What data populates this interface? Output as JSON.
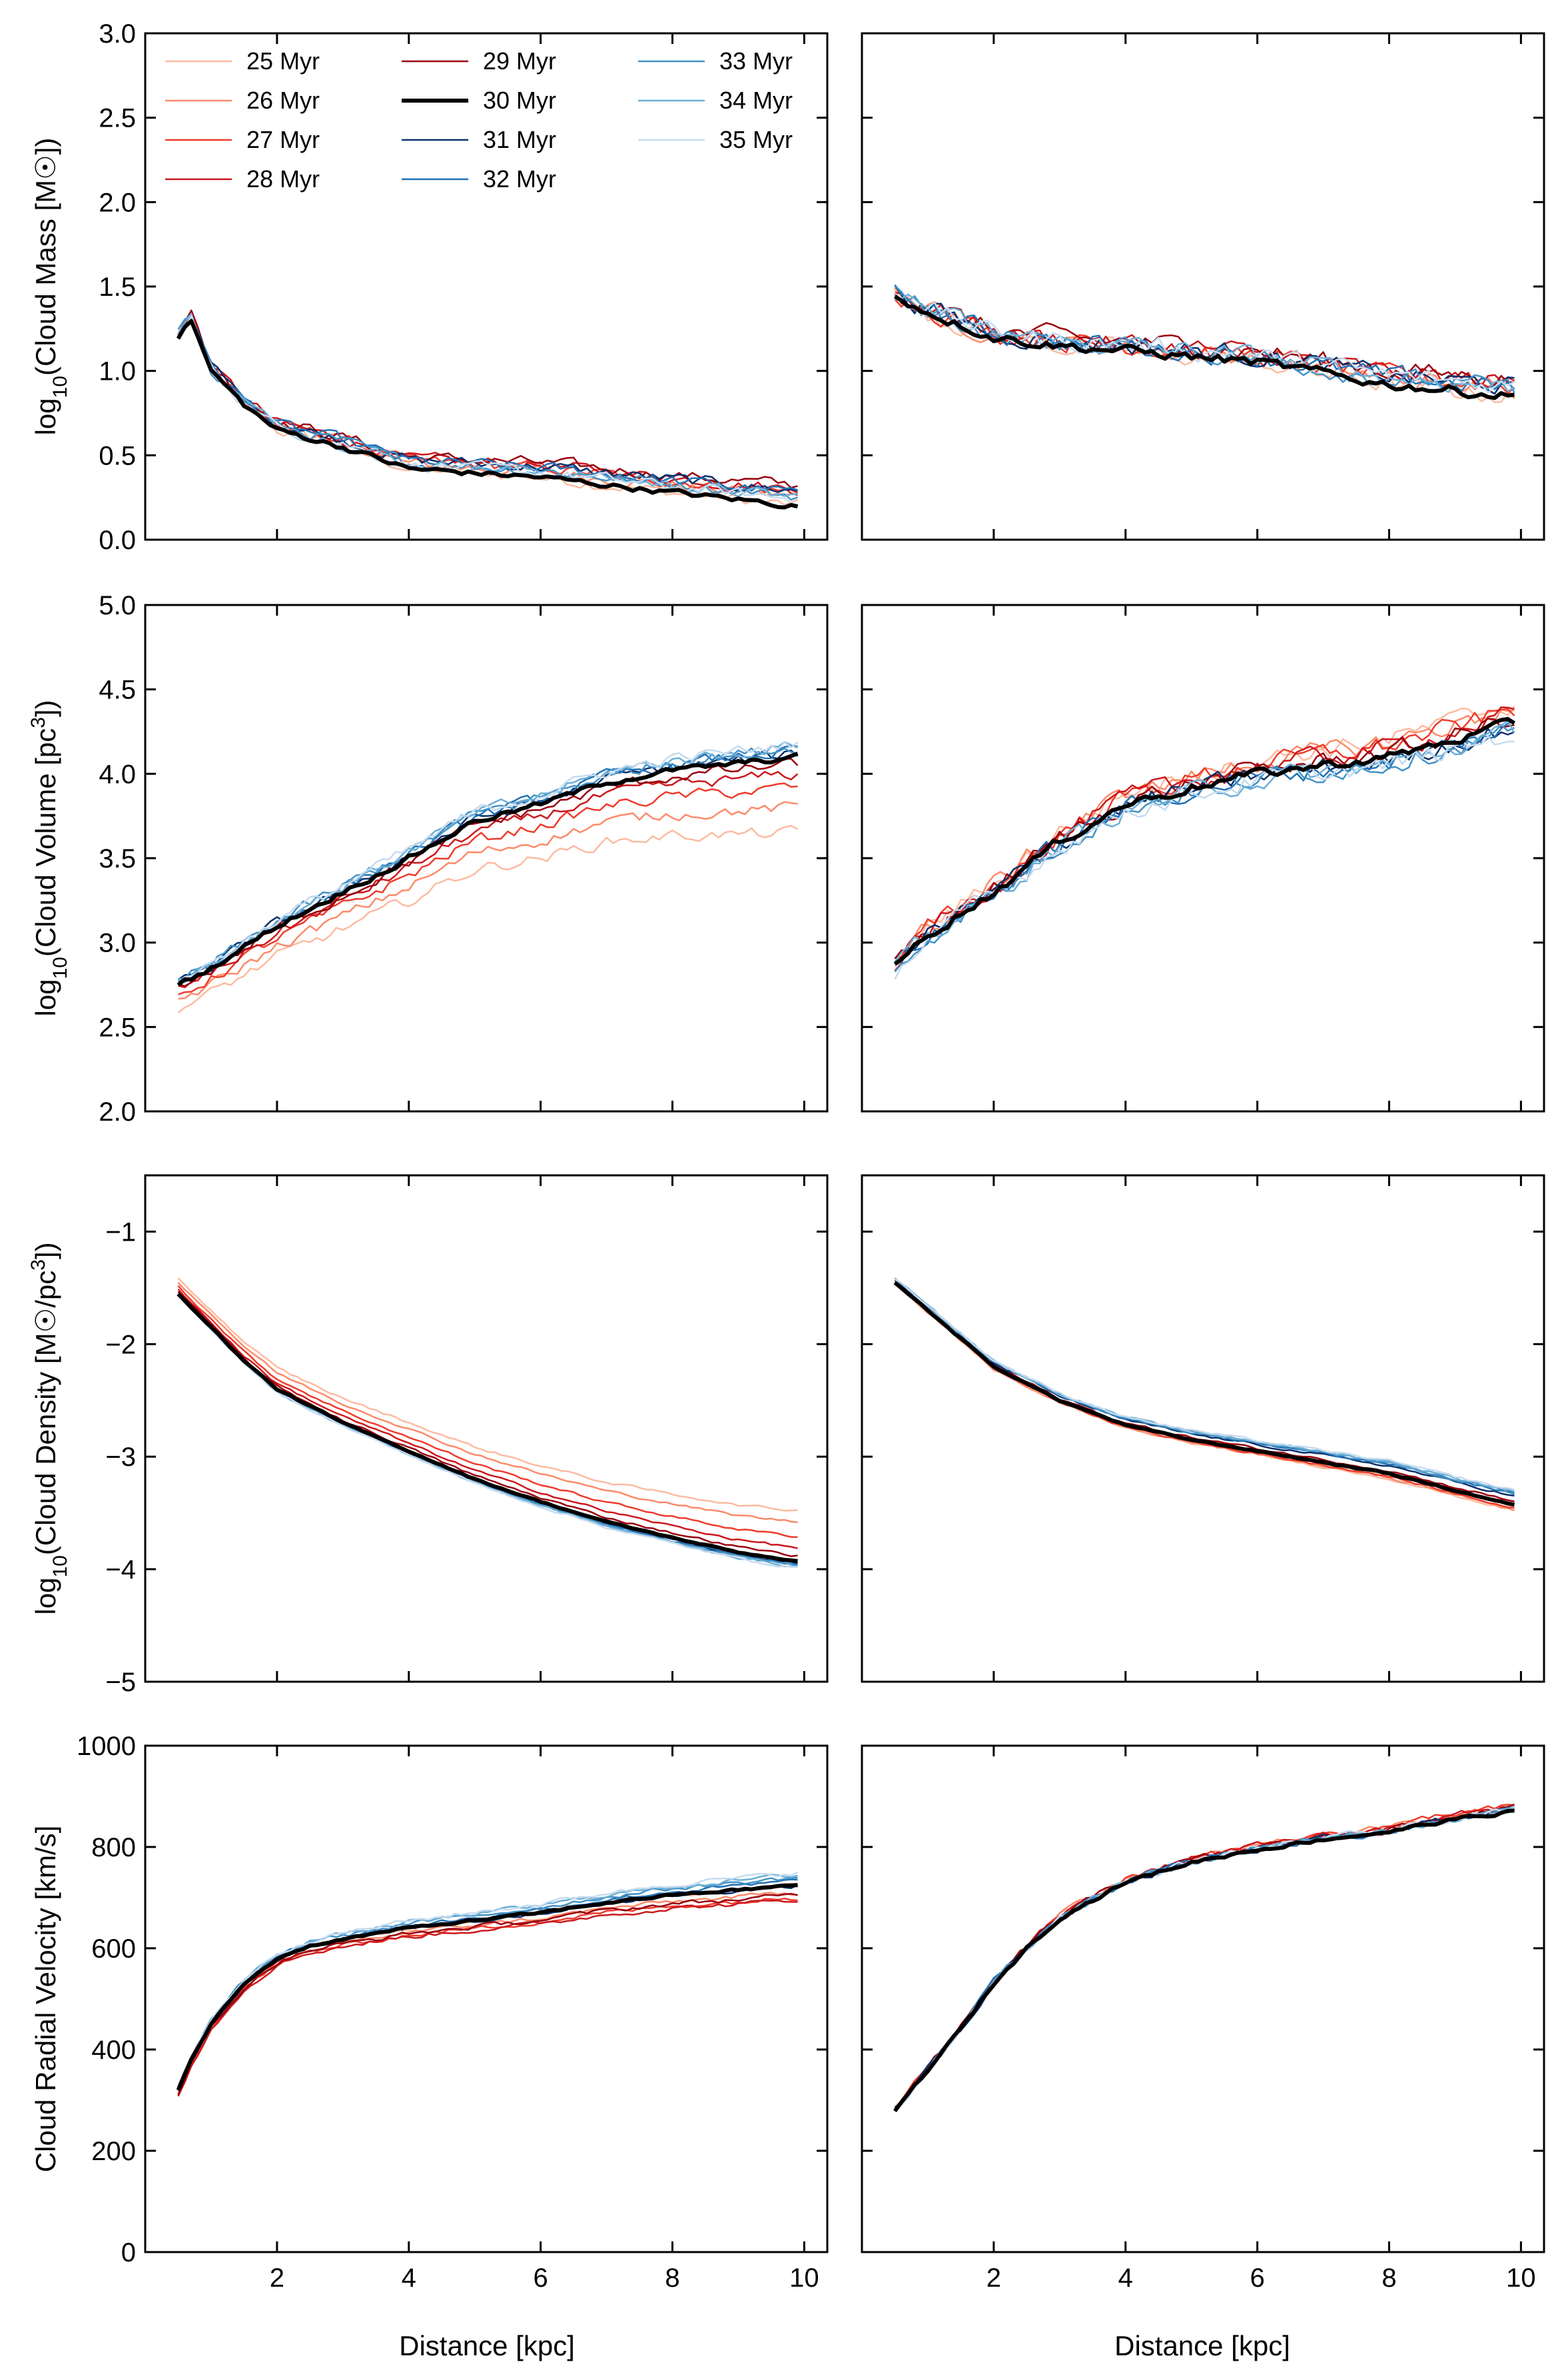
{
  "figure": {
    "x_axis_label": "Distance [kpc]",
    "legend": {
      "placement": "top-left of first panel",
      "entries": [
        {
          "label": "25 Myr",
          "color": "#fcbba1"
        },
        {
          "label": "26 Myr",
          "color": "#fc8a6a"
        },
        {
          "label": "27 Myr",
          "color": "#ef3b2c"
        },
        {
          "label": "28 Myr",
          "color": "#cb181d"
        },
        {
          "label": "29 Myr",
          "color": "#99000d"
        },
        {
          "label": "30 Myr",
          "color": "#000000"
        },
        {
          "label": "31 Myr",
          "color": "#08306b"
        },
        {
          "label": "32 Myr",
          "color": "#2171b5"
        },
        {
          "label": "33 Myr",
          "color": "#4292c6"
        },
        {
          "label": "34 Myr",
          "color": "#6baed6"
        },
        {
          "label": "35 Myr",
          "color": "#c6dbef"
        }
      ]
    }
  },
  "chart_data": [
    {
      "type": "line",
      "row": 0,
      "col": 0,
      "title": "",
      "ylabel": "log10(Cloud Mass [M☉])",
      "xlabel": "",
      "xlim": [
        0,
        10.35
      ],
      "ylim": [
        0,
        3
      ],
      "yticks": [
        0,
        0.5,
        1,
        1.5,
        2,
        2.5,
        3
      ],
      "ytick_labels": [
        "0.0",
        "0.5",
        "1.0",
        "1.5",
        "2.0",
        "2.5",
        "3.0"
      ],
      "xticks": [
        2,
        4,
        6,
        8,
        10
      ],
      "xtick_labels": [],
      "series_profile": {
        "x": [
          0.5,
          0.7,
          1,
          1.5,
          2,
          3,
          4,
          6,
          8,
          9.9
        ],
        "y": [
          1.2,
          1.3,
          1.0,
          0.8,
          0.65,
          0.55,
          0.42,
          0.37,
          0.28,
          0.2
        ]
      },
      "spread": [
        0,
        0.05,
        0.08,
        0.1,
        0.12,
        0.1,
        0.09,
        0.08,
        0.06,
        0.05,
        0.04
      ],
      "noise": 0.06
    },
    {
      "type": "line",
      "row": 0,
      "col": 1,
      "title": "",
      "ylabel": "",
      "xlabel": "",
      "xlim": [
        0,
        10.35
      ],
      "ylim": [
        0,
        3
      ],
      "yticks": [
        0,
        0.5,
        1,
        1.5,
        2,
        2.5,
        3
      ],
      "ytick_labels": [],
      "xticks": [
        2,
        4,
        6,
        8,
        10
      ],
      "xtick_labels": [],
      "series_profile": {
        "x": [
          0.5,
          1,
          2,
          3,
          4,
          6,
          8,
          9.9
        ],
        "y": [
          1.45,
          1.35,
          1.2,
          1.15,
          1.12,
          1.05,
          0.92,
          0.85
        ]
      },
      "spread": [
        0,
        0.04,
        0.06,
        0.08,
        0.1,
        0.08,
        0.06,
        0.05,
        0.04,
        0.05,
        0.06
      ],
      "noise": 0.1
    },
    {
      "type": "line",
      "row": 1,
      "col": 0,
      "title": "",
      "ylabel": "log10(Cloud Volume [pc3])",
      "xlabel": "",
      "xlim": [
        0,
        10.35
      ],
      "ylim": [
        2,
        5
      ],
      "yticks": [
        2,
        2.5,
        3,
        3.5,
        4,
        4.5,
        5
      ],
      "ytick_labels": [
        "2.0",
        "2.5",
        "3.0",
        "3.5",
        "4.0",
        "4.5",
        "5.0"
      ],
      "xticks": [
        2,
        4,
        6,
        8,
        10
      ],
      "xtick_labels": [],
      "series_profile": {
        "x": [
          0.5,
          1,
          2,
          3,
          4,
          5,
          6,
          7,
          8,
          9,
          9.9
        ],
        "y": [
          2.75,
          2.85,
          3.1,
          3.3,
          3.5,
          3.72,
          3.82,
          3.95,
          4.02,
          4.06,
          4.1
        ]
      },
      "spread": [
        -0.45,
        -0.3,
        -0.18,
        -0.1,
        -0.04,
        0,
        0.02,
        0.04,
        0.06,
        0.07,
        0.08
      ],
      "noise": 0.06
    },
    {
      "type": "line",
      "row": 1,
      "col": 1,
      "title": "",
      "ylabel": "",
      "xlabel": "",
      "xlim": [
        0,
        10.35
      ],
      "ylim": [
        2,
        5
      ],
      "yticks": [
        2,
        2.5,
        3,
        3.5,
        4,
        4.5,
        5
      ],
      "ytick_labels": [],
      "xticks": [
        2,
        4,
        6,
        8,
        10
      ],
      "xtick_labels": [],
      "series_profile": {
        "x": [
          0.5,
          1,
          2,
          3,
          4,
          5,
          6,
          7,
          8,
          9,
          9.9
        ],
        "y": [
          2.85,
          3.05,
          3.3,
          3.6,
          3.82,
          3.92,
          4.0,
          4.05,
          4.1,
          4.2,
          4.3
        ]
      },
      "spread": [
        0.12,
        0.1,
        0.08,
        0.06,
        0.03,
        0,
        -0.02,
        -0.03,
        -0.04,
        -0.05,
        -0.06
      ],
      "noise": 0.1
    },
    {
      "type": "line",
      "row": 2,
      "col": 0,
      "title": "",
      "ylabel": "log10(Cloud Density [M☉/pc3])",
      "xlabel": "",
      "xlim": [
        0,
        10.35
      ],
      "ylim": [
        -5,
        -0.5
      ],
      "yticks": [
        -5,
        -4,
        -3,
        -2,
        -1
      ],
      "ytick_labels": [
        "−5",
        "−4",
        "−3",
        "−2",
        "−1"
      ],
      "xticks": [
        2,
        4,
        6,
        8,
        10
      ],
      "xtick_labels": [],
      "series_profile": {
        "x": [
          0.5,
          1,
          1.5,
          2,
          3,
          4,
          5,
          6,
          7,
          8,
          9,
          9.9
        ],
        "y": [
          -1.55,
          -1.85,
          -2.15,
          -2.4,
          -2.7,
          -2.95,
          -3.2,
          -3.4,
          -3.58,
          -3.72,
          -3.85,
          -3.93
        ]
      },
      "spread": [
        0.45,
        0.35,
        0.22,
        0.12,
        0.05,
        0,
        -0.02,
        -0.03,
        -0.04,
        -0.05,
        -0.06
      ],
      "noise": 0.02
    },
    {
      "type": "line",
      "row": 2,
      "col": 1,
      "title": "",
      "ylabel": "",
      "xlabel": "",
      "xlim": [
        0,
        10.35
      ],
      "ylim": [
        -5,
        -0.5
      ],
      "yticks": [
        -5,
        -4,
        -3,
        -2,
        -1
      ],
      "ytick_labels": [],
      "xticks": [
        2,
        4,
        6,
        8,
        10
      ],
      "xtick_labels": [],
      "series_profile": {
        "x": [
          0.5,
          1,
          1.5,
          2,
          3,
          4,
          5,
          6,
          7,
          8,
          9,
          9.9
        ],
        "y": [
          -1.45,
          -1.7,
          -1.95,
          -2.2,
          -2.5,
          -2.72,
          -2.85,
          -2.95,
          -3.05,
          -3.15,
          -3.3,
          -3.43
        ]
      },
      "spread": [
        -0.05,
        -0.04,
        -0.03,
        0,
        0.03,
        0.06,
        0.08,
        0.1,
        0.11,
        0.12,
        0.13
      ],
      "noise": 0.02
    },
    {
      "type": "line",
      "row": 3,
      "col": 0,
      "title": "",
      "ylabel": "Cloud Radial Velocity [km/s]",
      "xlabel": "Distance [kpc]",
      "xlim": [
        0,
        10.35
      ],
      "ylim": [
        0,
        1000
      ],
      "yticks": [
        0,
        200,
        400,
        600,
        800,
        1000
      ],
      "ytick_labels": [
        "0",
        "200",
        "400",
        "600",
        "800",
        "1000"
      ],
      "xticks": [
        2,
        4,
        6,
        8,
        10
      ],
      "xtick_labels": [
        "2",
        "4",
        "6",
        "8",
        "10"
      ],
      "series_profile": {
        "x": [
          0.5,
          0.7,
          1,
          1.5,
          2,
          2.5,
          3,
          4,
          5,
          6,
          7,
          8,
          9,
          9.9
        ],
        "y": [
          320,
          380,
          450,
          530,
          580,
          605,
          618,
          640,
          655,
          670,
          690,
          705,
          715,
          725
        ]
      },
      "spread": [
        0,
        -15,
        -25,
        -30,
        -20,
        -10,
        0,
        8,
        15,
        20,
        25,
        30,
        30,
        30
      ],
      "noise": 8
    },
    {
      "type": "line",
      "row": 3,
      "col": 1,
      "title": "",
      "ylabel": "",
      "xlabel": "Distance [kpc]",
      "xlim": [
        0,
        10.35
      ],
      "ylim": [
        0,
        1000
      ],
      "yticks": [
        0,
        200,
        400,
        600,
        800,
        1000
      ],
      "ytick_labels": [],
      "xticks": [
        2,
        4,
        6,
        8,
        10
      ],
      "xtick_labels": [
        "2",
        "4",
        "6",
        "8",
        "10"
      ],
      "series_profile": {
        "x": [
          0.5,
          1,
          1.5,
          2,
          2.5,
          3,
          4,
          5,
          6,
          7,
          8,
          9,
          9.9
        ],
        "y": [
          280,
          360,
          440,
          530,
          600,
          660,
          730,
          770,
          795,
          815,
          830,
          855,
          870
        ]
      },
      "spread": [
        5,
        8,
        10,
        8,
        6,
        4,
        3,
        2,
        1,
        1,
        1,
        1
      ],
      "noise": 12
    }
  ]
}
